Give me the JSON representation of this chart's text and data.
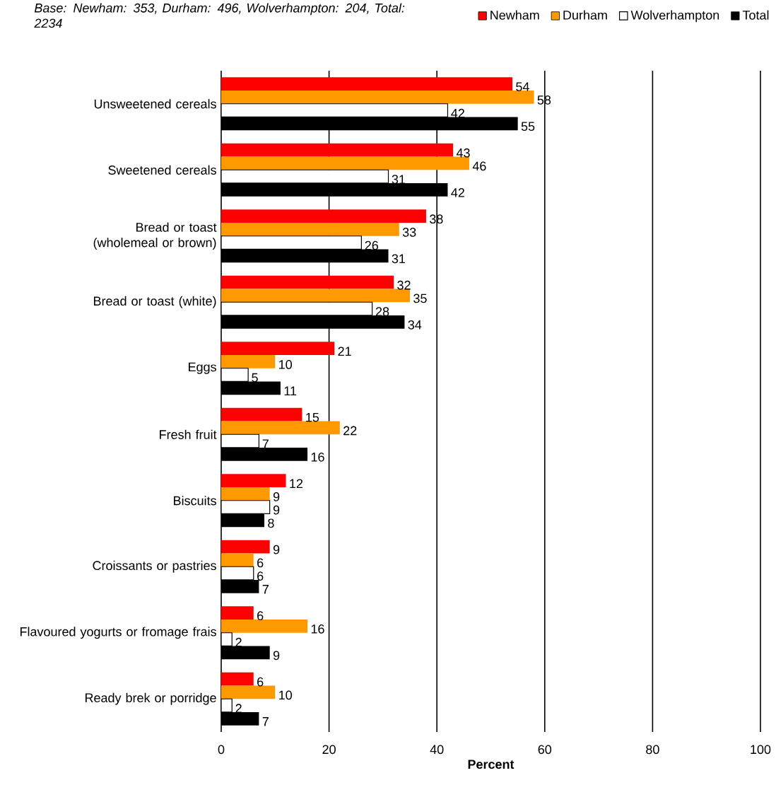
{
  "chart_data": {
    "type": "bar",
    "orientation": "horizontal",
    "subtitle": "Base: Newham: 353, Durham: 496, Wolverhampton: 204, Total: 2234",
    "xlabel": "Percent",
    "categories": [
      "Unsweetened cereals",
      "Sweetened cereals",
      "Bread or toast (wholemeal or brown)",
      "Bread or toast (white)",
      "Eggs",
      "Fresh fruit",
      "Biscuits",
      "Croissants or pastries",
      "Flavoured yogurts or fromage frais",
      "Ready brek or porridge"
    ],
    "series": [
      {
        "name": "Newham",
        "color": "#ff0000",
        "values": [
          54,
          43,
          38,
          32,
          21,
          15,
          12,
          9,
          6,
          6
        ]
      },
      {
        "name": "Durham",
        "color": "#ff9900",
        "values": [
          58,
          46,
          33,
          35,
          10,
          22,
          9,
          6,
          16,
          10
        ]
      },
      {
        "name": "Wolverhampton",
        "color": "#ffffff",
        "values": [
          42,
          31,
          26,
          28,
          5,
          7,
          9,
          6,
          2,
          2
        ]
      },
      {
        "name": "Total",
        "color": "#000000",
        "values": [
          55,
          42,
          31,
          34,
          11,
          16,
          8,
          7,
          9,
          7
        ]
      }
    ],
    "xlim": [
      0,
      100
    ],
    "xticks": [
      0,
      20,
      40,
      60,
      80,
      100
    ],
    "grid": "x",
    "legend": "top right",
    "data_labels": true
  }
}
